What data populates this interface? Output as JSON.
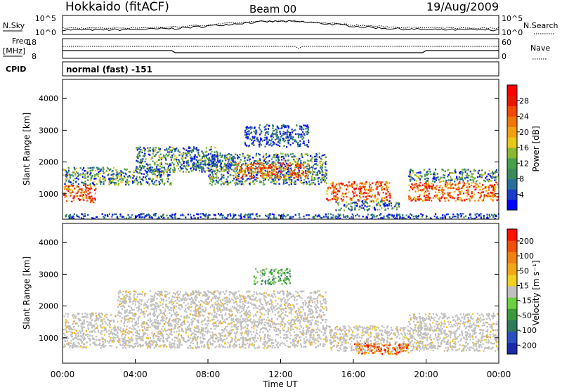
{
  "header": {
    "station": "Hokkaido (fitACF)",
    "beam": "Beam 00",
    "date": "19/Aug/2009"
  },
  "strip": {
    "nsky_label": "N.Sky",
    "nsearch_label": "N.Search",
    "noise_ticks_left": [
      "10^5",
      "10^0"
    ],
    "noise_ticks_right": [
      "10^5",
      "10^0"
    ],
    "freq_label": "Freq.",
    "freq_unit": "[MHz]",
    "freq_ticks": [
      "18",
      "8"
    ],
    "nave_label": "Nave",
    "nave_ticks": [
      "60",
      "0"
    ],
    "cpid_label": "CPID",
    "cpid_value": "normal (fast) -151"
  },
  "chart_data": [
    {
      "type": "heatmap",
      "name": "power",
      "ylabel": "Slant Range [km]",
      "yticks": [
        "1000",
        "2000",
        "3000",
        "4000"
      ],
      "ylim": [
        200,
        4600
      ],
      "xlim": [
        0,
        24
      ],
      "colorbar": {
        "label": "Power [dB]",
        "ticks": [
          "4",
          "8",
          "12",
          "16",
          "20",
          "24",
          "28"
        ],
        "colors": [
          "#0000ff",
          "#1a3cc8",
          "#2a6e9a",
          "#3b8a5c",
          "#4aa04a",
          "#8ab830",
          "#e6c818",
          "#f0a010",
          "#f07808",
          "#f04a04",
          "#e81800",
          "#ff0000"
        ]
      },
      "regions": [
        {
          "t": [
            0.0,
            1.8
          ],
          "r": [
            750,
            1300
          ],
          "level": "high"
        },
        {
          "t": [
            0.0,
            3.0
          ],
          "r": [
            1300,
            1850
          ],
          "level": "mid"
        },
        {
          "t": [
            2.5,
            6.0
          ],
          "r": [
            1300,
            1800
          ],
          "level": "mid"
        },
        {
          "t": [
            4.0,
            8.5
          ],
          "r": [
            1700,
            2500
          ],
          "level": "mid"
        },
        {
          "t": [
            7.0,
            9.5
          ],
          "r": [
            1800,
            2200
          ],
          "level": "low"
        },
        {
          "t": [
            8.0,
            14.5
          ],
          "r": [
            1300,
            2300
          ],
          "level": "mid"
        },
        {
          "t": [
            9.5,
            13.5
          ],
          "r": [
            1500,
            2000
          ],
          "level": "high"
        },
        {
          "t": [
            10.0,
            13.5
          ],
          "r": [
            2500,
            3200
          ],
          "level": "low"
        },
        {
          "t": [
            14.5,
            18.0
          ],
          "r": [
            800,
            1400
          ],
          "level": "high"
        },
        {
          "t": [
            15.0,
            18.5
          ],
          "r": [
            500,
            800
          ],
          "level": "mid"
        },
        {
          "t": [
            19.0,
            24.0
          ],
          "r": [
            800,
            1400
          ],
          "level": "high"
        },
        {
          "t": [
            19.0,
            24.0
          ],
          "r": [
            1400,
            1800
          ],
          "level": "mid"
        },
        {
          "t": [
            0.0,
            24.0
          ],
          "r": [
            200,
            400
          ],
          "level": "low"
        }
      ]
    },
    {
      "type": "heatmap",
      "name": "velocity",
      "ylabel": "Slant Range [km]",
      "yticks": [
        "1000",
        "2000",
        "3000",
        "4000"
      ],
      "ylim": [
        200,
        4600
      ],
      "xlim": [
        0,
        24
      ],
      "xlabel": "Time UT",
      "xticks": [
        "00:00",
        "04:00",
        "08:00",
        "12:00",
        "16:00",
        "20:00",
        "00:00"
      ],
      "colorbar": {
        "label": "Velocity [m s⁻¹]",
        "ticks": [
          "200",
          "100",
          "50",
          "15",
          "-15",
          "-50",
          "-100",
          "-200"
        ],
        "colors": [
          "#1a2aa8",
          "#2850c0",
          "#2e7a5a",
          "#3a9a3a",
          "#6ad040",
          "#c0c0c0",
          "#f0d020",
          "#f0a818",
          "#f08010",
          "#f05008",
          "#ff1000"
        ]
      },
      "regions": [
        {
          "t": [
            0.0,
            3.0
          ],
          "r": [
            700,
            1800
          ],
          "level": "ground"
        },
        {
          "t": [
            3.0,
            14.5
          ],
          "r": [
            700,
            2500
          ],
          "level": "ground"
        },
        {
          "t": [
            14.5,
            19.0
          ],
          "r": [
            600,
            1400
          ],
          "level": "ground"
        },
        {
          "t": [
            19.0,
            24.0
          ],
          "r": [
            600,
            1800
          ],
          "level": "ground"
        },
        {
          "t": [
            16.0,
            19.0
          ],
          "r": [
            500,
            850
          ],
          "level": "away"
        },
        {
          "t": [
            10.5,
            12.5
          ],
          "r": [
            2700,
            3200
          ],
          "level": "toward"
        }
      ]
    }
  ]
}
